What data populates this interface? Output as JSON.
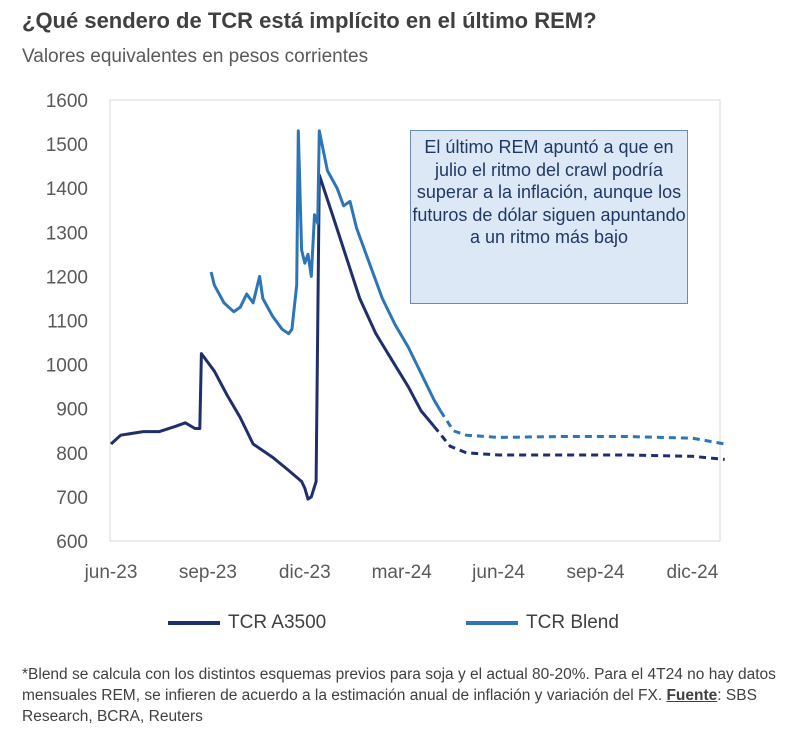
{
  "chart_data": {
    "type": "line",
    "title": "¿Qué sendero de TCR está implícito en el último REM?",
    "subtitle": "Valores equivalentes en pesos corrientes",
    "ylim": [
      600,
      1600
    ],
    "yticks": [
      600,
      700,
      800,
      900,
      1000,
      1100,
      1200,
      1300,
      1400,
      1500,
      1600
    ],
    "xticks": [
      "jun-23",
      "sep-23",
      "dic-23",
      "mar-24",
      "jun-24",
      "sep-24",
      "dic-24"
    ],
    "x_unit": "months since jun-23",
    "xlim": [
      0,
      19
    ],
    "series": [
      {
        "name": "TCR A3500",
        "color": "#1f2f6b",
        "dashed_from": 10,
        "points": [
          [
            0,
            820
          ],
          [
            0.3,
            840
          ],
          [
            1,
            848
          ],
          [
            1.5,
            848
          ],
          [
            2,
            860
          ],
          [
            2.3,
            868
          ],
          [
            2.6,
            855
          ],
          [
            2.75,
            855
          ],
          [
            2.8,
            1025
          ],
          [
            3.2,
            985
          ],
          [
            3.6,
            930
          ],
          [
            4,
            880
          ],
          [
            4.4,
            820
          ],
          [
            5,
            790
          ],
          [
            5.5,
            760
          ],
          [
            5.9,
            735
          ],
          [
            6.0,
            720
          ],
          [
            6.1,
            695
          ],
          [
            6.2,
            700
          ],
          [
            6.35,
            735
          ],
          [
            6.45,
            1430
          ],
          [
            6.9,
            1330
          ],
          [
            7.3,
            1240
          ],
          [
            7.7,
            1150
          ],
          [
            8.2,
            1070
          ],
          [
            8.7,
            1010
          ],
          [
            9.2,
            950
          ],
          [
            9.6,
            895
          ],
          [
            10,
            860
          ],
          [
            10.5,
            815
          ],
          [
            11,
            800
          ],
          [
            12,
            795
          ],
          [
            14,
            795
          ],
          [
            16,
            795
          ],
          [
            18,
            792
          ],
          [
            19,
            785
          ]
        ]
      },
      {
        "name": "TCR Blend",
        "color": "#2e75b6",
        "dashed_from": 10.2,
        "points": [
          [
            3.1,
            1210
          ],
          [
            3.2,
            1180
          ],
          [
            3.5,
            1140
          ],
          [
            3.8,
            1120
          ],
          [
            4.0,
            1130
          ],
          [
            4.2,
            1160
          ],
          [
            4.4,
            1140
          ],
          [
            4.6,
            1200
          ],
          [
            4.7,
            1150
          ],
          [
            5.0,
            1110
          ],
          [
            5.3,
            1080
          ],
          [
            5.5,
            1070
          ],
          [
            5.6,
            1080
          ],
          [
            5.75,
            1180
          ],
          [
            5.8,
            1530
          ],
          [
            5.9,
            1260
          ],
          [
            6.0,
            1230
          ],
          [
            6.1,
            1250
          ],
          [
            6.2,
            1200
          ],
          [
            6.3,
            1340
          ],
          [
            6.4,
            1320
          ],
          [
            6.45,
            1530
          ],
          [
            6.7,
            1440
          ],
          [
            7.0,
            1400
          ],
          [
            7.2,
            1360
          ],
          [
            7.4,
            1370
          ],
          [
            7.6,
            1310
          ],
          [
            8,
            1230
          ],
          [
            8.4,
            1150
          ],
          [
            8.8,
            1090
          ],
          [
            9.2,
            1040
          ],
          [
            9.6,
            980
          ],
          [
            10,
            920
          ],
          [
            10.2,
            895
          ],
          [
            10.6,
            850
          ],
          [
            11,
            840
          ],
          [
            12,
            835
          ],
          [
            14,
            837
          ],
          [
            16,
            837
          ],
          [
            18,
            833
          ],
          [
            19,
            820
          ]
        ]
      }
    ],
    "annotation": "El último REM apuntó a que en julio el ritmo del crawl podría superar a la inflación, aunque los futuros de dólar siguen apuntando a un ritmo más bajo",
    "legend": "bottom",
    "grid": false
  },
  "footnote": {
    "text1": "*Blend se calcula con los distintos esquemas previos para soja y el actual 80-20%. Para el 4T24 no hay datos mensuales REM, se infieren de acuerdo a la estimación anual de inflación y variación del FX. ",
    "source_label": "Fuente",
    "text2": ": SBS Research, BCRA, Reuters"
  }
}
